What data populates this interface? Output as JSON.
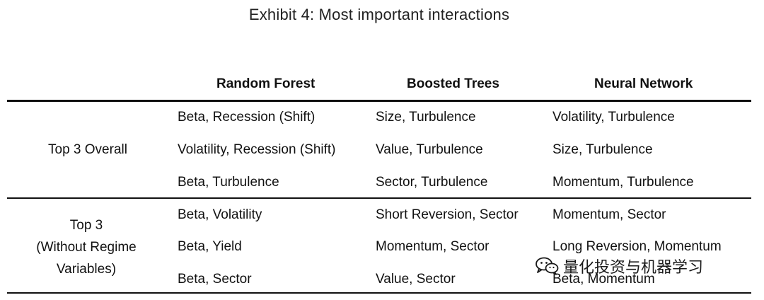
{
  "title": "Exhibit 4: Most important interactions",
  "columns": [
    "Random Forest",
    "Boosted Trees",
    "Neural Network"
  ],
  "groups": [
    {
      "label": "Top 3 Overall",
      "rows": [
        [
          "Beta, Recession (Shift)",
          "Size, Turbulence",
          "Volatility, Turbulence"
        ],
        [
          "Volatility, Recession (Shift)",
          "Value, Turbulence",
          "Size, Turbulence"
        ],
        [
          "Beta, Turbulence",
          "Sector, Turbulence",
          "Momentum, Turbulence"
        ]
      ]
    },
    {
      "label_lines": [
        "Top 3",
        "(Without Regime",
        "Variables)"
      ],
      "rows": [
        [
          "Beta, Volatility",
          "Short Reversion, Sector",
          "Momentum, Sector"
        ],
        [
          "Beta, Yield",
          "Momentum, Sector",
          "Long Reversion, Momentum"
        ],
        [
          "Beta, Sector",
          "Value, Sector",
          "Beta, Momentum"
        ]
      ]
    }
  ],
  "watermark": {
    "text": "量化投资与机器学习",
    "icon": "wechat-icon"
  }
}
